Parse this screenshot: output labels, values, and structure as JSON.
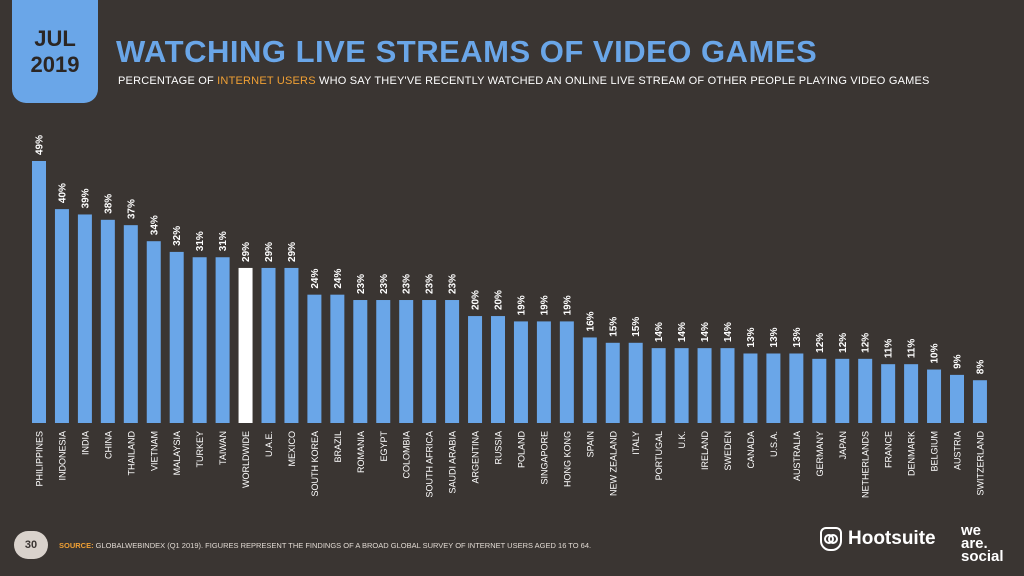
{
  "header": {
    "month": "JUL",
    "year": "2019",
    "title": "WATCHING LIVE STREAMS OF VIDEO GAMES",
    "subtitle_pre": "PERCENTAGE OF ",
    "subtitle_highlight": "INTERNET USERS",
    "subtitle_post": " WHO SAY THEY'VE RECENTLY WATCHED AN ONLINE LIVE STREAM OF OTHER PEOPLE PLAYING VIDEO GAMES"
  },
  "footer": {
    "page_number": "30",
    "source_label": "SOURCE:",
    "source_text": " GLOBALWEBINDEX (Q1 2019). FIGURES REPRESENT THE FINDINGS OF A BROAD GLOBAL SURVEY OF INTERNET USERS AGED 16 TO 64.",
    "brand_1": "Hootsuite",
    "brand_2_lines": [
      "we",
      "are.",
      "social"
    ]
  },
  "colors": {
    "background": "#3a3532",
    "bar": "#6aa6e8",
    "highlight_bar": "#ffffff",
    "accent": "#f0a034"
  },
  "chart_data": {
    "type": "bar",
    "categories": [
      "PHILIPPINES",
      "INDONESIA",
      "INDIA",
      "CHINA",
      "THAILAND",
      "VIETNAM",
      "MALAYSIA",
      "TURKEY",
      "TAIWAN",
      "WORLDWIDE",
      "U.A.E.",
      "MEXICO",
      "SOUTH KOREA",
      "BRAZIL",
      "ROMANIA",
      "EGYPT",
      "COLOMBIA",
      "SOUTH AFRICA",
      "SAUDI ARABIA",
      "ARGENTINA",
      "RUSSIA",
      "POLAND",
      "SINGAPORE",
      "HONG KONG",
      "SPAIN",
      "NEW ZEALAND",
      "ITALY",
      "PORTUGAL",
      "U.K.",
      "IRELAND",
      "SWEDEN",
      "CANADA",
      "U.S.A.",
      "AUSTRALIA",
      "GERMANY",
      "JAPAN",
      "NETHERLANDS",
      "FRANCE",
      "DENMARK",
      "BELGIUM",
      "AUSTRIA",
      "SWITZERLAND"
    ],
    "values": [
      49,
      40,
      39,
      38,
      37,
      34,
      32,
      31,
      31,
      29,
      29,
      29,
      24,
      24,
      23,
      23,
      23,
      23,
      23,
      20,
      20,
      19,
      19,
      19,
      16,
      15,
      15,
      14,
      14,
      14,
      14,
      13,
      13,
      13,
      12,
      12,
      12,
      11,
      11,
      10,
      9,
      8
    ],
    "value_labels": [
      "49%",
      "40%",
      "39%",
      "38%",
      "37%",
      "34%",
      "32%",
      "31%",
      "31%",
      "29%",
      "29%",
      "29%",
      "24%",
      "24%",
      "23%",
      "23%",
      "23%",
      "23%",
      "23%",
      "20%",
      "20%",
      "19%",
      "19%",
      "19%",
      "16%",
      "15%",
      "15%",
      "14%",
      "14%",
      "14%",
      "14%",
      "13%",
      "13%",
      "13%",
      "12%",
      "12%",
      "12%",
      "11%",
      "11%",
      "10%",
      "9%",
      "8%"
    ],
    "highlight": "WORLDWIDE",
    "ylim": [
      0,
      49
    ]
  }
}
